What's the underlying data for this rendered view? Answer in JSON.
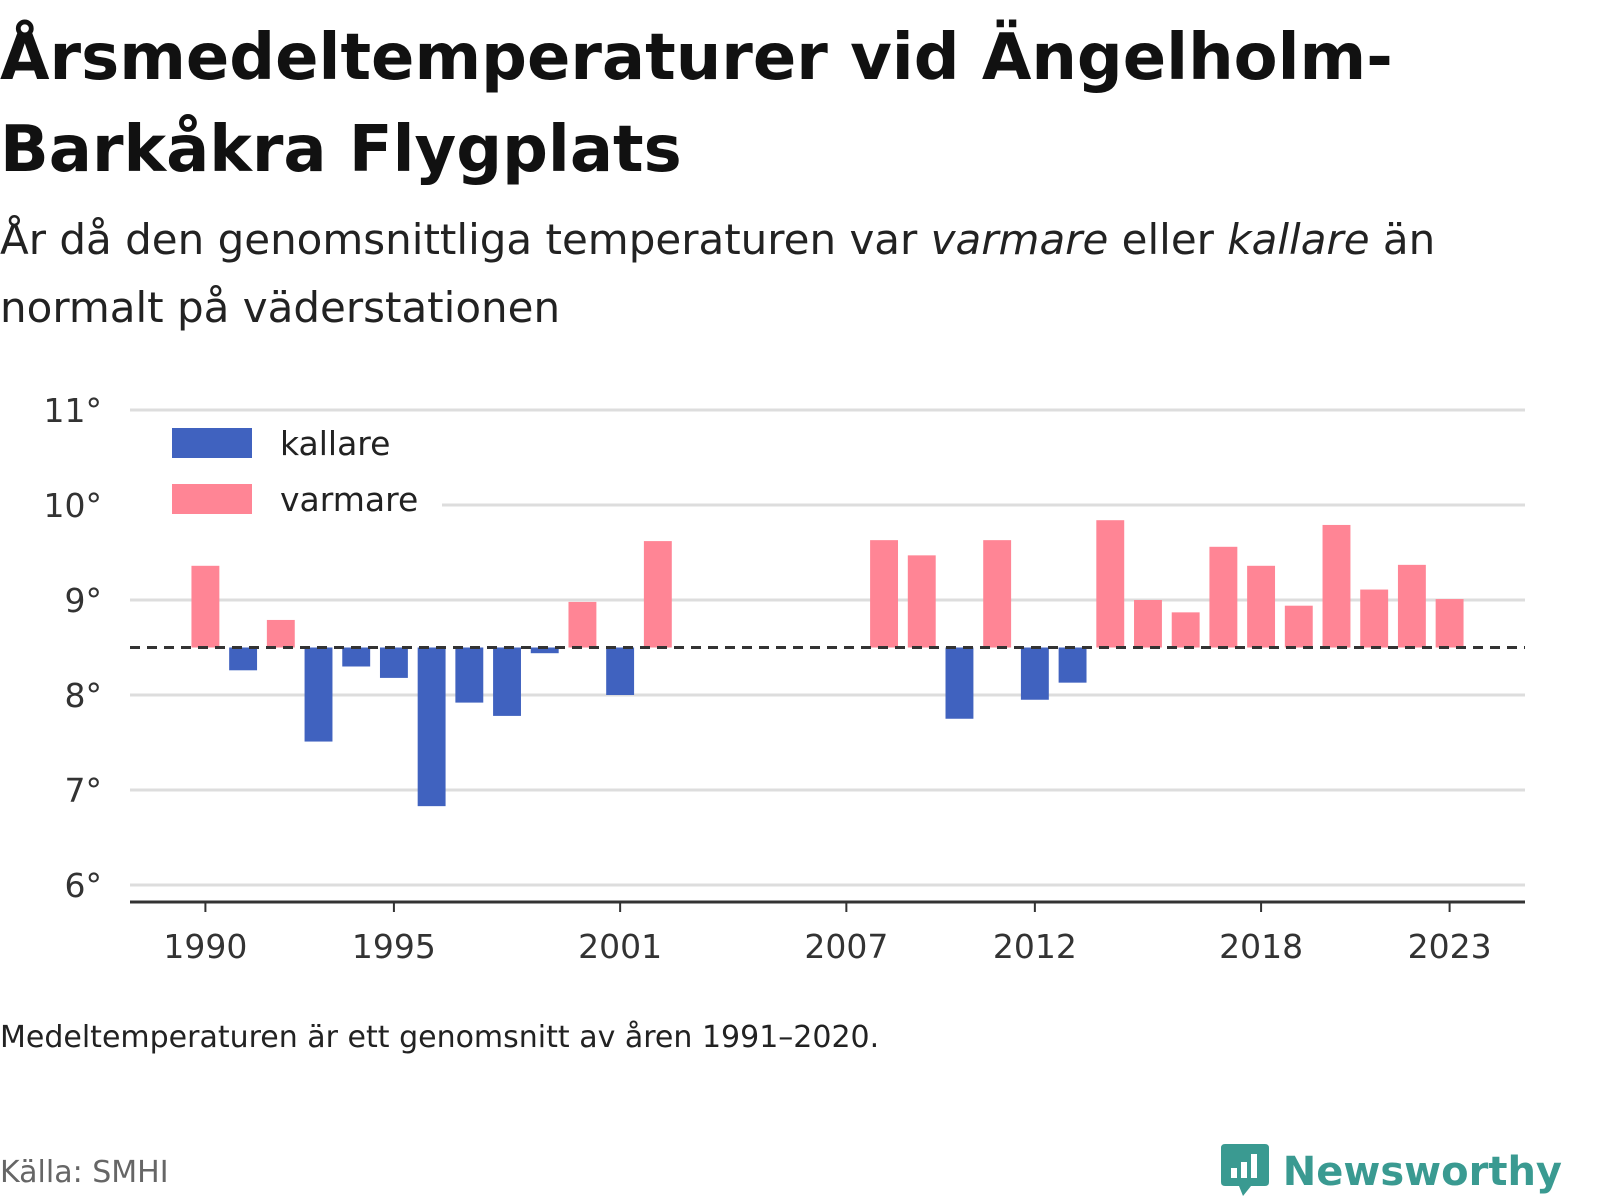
{
  "title": "Årsmedeltemperaturer vid Ängelholm-Barkåkra Flygplats",
  "subtitle": {
    "before": "År då den genomsnittliga temperaturen var ",
    "warmer": "varmare",
    "middle": " eller ",
    "colder": "kallare",
    "after": " än normalt på väderstationen"
  },
  "note": "Medeltemperaturen är ett genomsnitt av åren 1991–2020.",
  "source": "Källa: SMHI",
  "brand": "Newsworthy",
  "colors": {
    "cold": "#4062bf",
    "warm": "#ff8595",
    "grid": "#dddddd",
    "baseline": "#333333",
    "brand": "#3a9a91"
  },
  "chart_data": {
    "type": "bar",
    "baseline": 8.5,
    "ylim": [
      6,
      11
    ],
    "yticks": [
      6,
      7,
      8,
      9,
      10,
      11
    ],
    "ytick_labels": [
      "6°",
      "7°",
      "8°",
      "9°",
      "10°",
      "11°"
    ],
    "xticks": [
      1990,
      1995,
      2001,
      2007,
      2012,
      2018,
      2023
    ],
    "xtick_labels": [
      "1990",
      "1995",
      "2001",
      "2007",
      "2012",
      "2018",
      "2023"
    ],
    "xlim": [
      1988,
      2025
    ],
    "legend": {
      "position": "top-left",
      "items": [
        {
          "label": "kallare",
          "color": "cold"
        },
        {
          "label": "varmare",
          "color": "warm"
        }
      ]
    },
    "years": [
      1990,
      1991,
      1992,
      1993,
      1994,
      1995,
      1996,
      1997,
      1998,
      1999,
      2000,
      2001,
      2002,
      2008,
      2009,
      2010,
      2011,
      2012,
      2013,
      2014,
      2015,
      2016,
      2017,
      2018,
      2019,
      2020,
      2021,
      2022,
      2023
    ],
    "values": [
      9.36,
      8.26,
      8.79,
      7.51,
      8.3,
      8.18,
      6.83,
      7.92,
      7.78,
      8.44,
      8.98,
      8.0,
      9.62,
      9.63,
      9.47,
      7.75,
      9.63,
      7.95,
      8.13,
      9.84,
      9.0,
      8.87,
      9.56,
      9.36,
      8.94,
      9.79,
      9.11,
      9.37,
      9.01
    ]
  }
}
